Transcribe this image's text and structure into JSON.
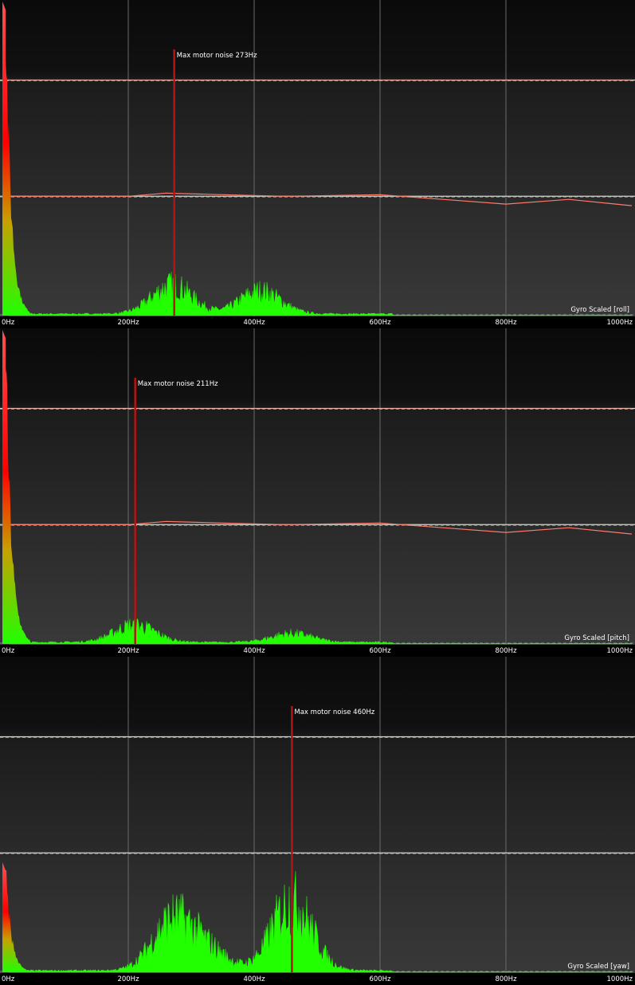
{
  "chart_data": [
    {
      "type": "area",
      "axis_label": "Gyro Scaled [roll]",
      "x_unit": "Hz",
      "xlim": [
        0,
        1000
      ],
      "x_ticks": [
        "0Hz",
        "200Hz",
        "400Hz",
        "600Hz",
        "800Hz",
        "1000Hz"
      ],
      "grid": true,
      "max_noise_hz": 273,
      "max_noise_label": "Max motor noise 273Hz",
      "dc_peak_level": 1.0,
      "spectrum_peaks": [
        {
          "hz": 270,
          "level": 0.1
        },
        {
          "hz": 410,
          "level": 0.08
        }
      ],
      "filter_curve": [
        {
          "hz": 0,
          "level": 0.38
        },
        {
          "hz": 200,
          "level": 0.38
        },
        {
          "hz": 260,
          "level": 0.39
        },
        {
          "hz": 350,
          "level": 0.385
        },
        {
          "hz": 450,
          "level": 0.38
        },
        {
          "hz": 600,
          "level": 0.385
        },
        {
          "hz": 700,
          "level": 0.37
        },
        {
          "hz": 800,
          "level": 0.355
        },
        {
          "hz": 900,
          "level": 0.37
        },
        {
          "hz": 1000,
          "level": 0.35
        }
      ]
    },
    {
      "type": "area",
      "axis_label": "Gyro Scaled [pitch]",
      "x_unit": "Hz",
      "xlim": [
        0,
        1000
      ],
      "x_ticks": [
        "0Hz",
        "200Hz",
        "400Hz",
        "600Hz",
        "800Hz",
        "1000Hz"
      ],
      "grid": true,
      "max_noise_hz": 211,
      "max_noise_label": "Max motor noise 211Hz",
      "dc_peak_level": 1.0,
      "spectrum_peaks": [
        {
          "hz": 210,
          "level": 0.06
        },
        {
          "hz": 460,
          "level": 0.03
        }
      ],
      "filter_curve": [
        {
          "hz": 0,
          "level": 0.38
        },
        {
          "hz": 200,
          "level": 0.38
        },
        {
          "hz": 260,
          "level": 0.39
        },
        {
          "hz": 350,
          "level": 0.385
        },
        {
          "hz": 450,
          "level": 0.38
        },
        {
          "hz": 600,
          "level": 0.385
        },
        {
          "hz": 700,
          "level": 0.37
        },
        {
          "hz": 800,
          "level": 0.355
        },
        {
          "hz": 900,
          "level": 0.37
        },
        {
          "hz": 1000,
          "level": 0.35
        }
      ]
    },
    {
      "type": "area",
      "axis_label": "Gyro Scaled [yaw]",
      "x_unit": "Hz",
      "xlim": [
        0,
        1000
      ],
      "x_ticks": [
        "0Hz",
        "200Hz",
        "400Hz",
        "600Hz",
        "800Hz",
        "1000Hz"
      ],
      "grid": true,
      "max_noise_hz": 460,
      "max_noise_label": "Max motor noise 460Hz",
      "dc_peak_level": 0.35,
      "spectrum_peaks": [
        {
          "hz": 270,
          "level": 0.17
        },
        {
          "hz": 325,
          "level": 0.07
        },
        {
          "hz": 460,
          "level": 0.24
        }
      ],
      "filter_curve": [
        {
          "hz": 0,
          "level": 0.38
        },
        {
          "hz": 1000,
          "level": 0.38
        }
      ]
    }
  ]
}
